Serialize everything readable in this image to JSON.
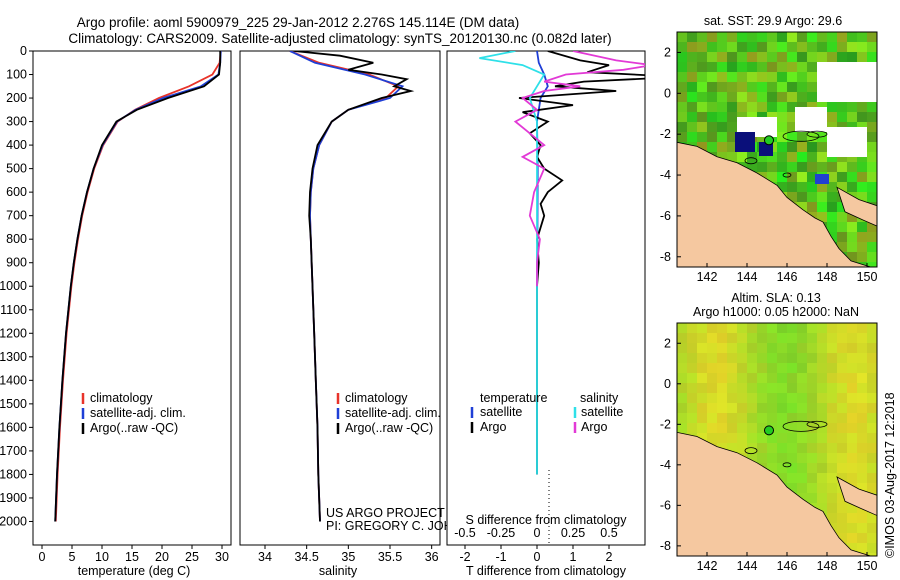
{
  "header": {
    "title_line1": "Argo profile: aoml 5900979_225 29-Jan-2012 2.276S 145.114E (DM data)",
    "title_line2": "Climatology: CARS2009. Satellite-adjusted climatology: synTS_20120130.nc (0.082d later)"
  },
  "colors": {
    "climatology": "#e8332a",
    "satellite": "#1f3fd6",
    "argo": "#000000",
    "sat_salinity": "#2ee0e8",
    "argo_salinity": "#e23ad6",
    "land": "#f5c8a0",
    "sst_green": "#22cc22"
  },
  "project": {
    "line1": "US ARGO PROJECT",
    "line2": "PI: GREGORY C. JOHNSON"
  },
  "credit": "©IMOS 03-Aug-2017 12:2018",
  "chart_data": [
    {
      "type": "line",
      "panel": "temperature",
      "xlabel": "temperature (deg C)",
      "ylabel": "",
      "xlim": [
        -1.5,
        31.5
      ],
      "ylim": [
        2100,
        0
      ],
      "xticks": [
        0,
        5,
        10,
        15,
        20,
        25,
        30
      ],
      "yticks": [
        0,
        100,
        200,
        300,
        400,
        500,
        600,
        700,
        800,
        900,
        1000,
        1100,
        1200,
        1300,
        1400,
        1500,
        1600,
        1700,
        1800,
        1900,
        2000
      ],
      "legend": [
        "climatology",
        "satellite-adj. clim.",
        "Argo(..raw -QC)"
      ],
      "series": [
        {
          "name": "climatology",
          "color": "#e8332a",
          "depth": [
            0,
            50,
            100,
            150,
            200,
            250,
            300,
            400,
            500,
            600,
            700,
            800,
            900,
            1000,
            1200,
            1400,
            1600,
            1800,
            2000
          ],
          "values": [
            29.8,
            29.6,
            28.4,
            24.5,
            19.5,
            15.5,
            12.6,
            10.2,
            8.7,
            7.6,
            6.7,
            6.0,
            5.4,
            4.9,
            4.1,
            3.5,
            3.0,
            2.6,
            2.3
          ]
        },
        {
          "name": "satellite-adj. clim.",
          "color": "#1f3fd6",
          "depth": [
            0,
            50,
            100,
            150,
            200,
            250,
            300,
            400,
            500,
            600,
            700,
            800,
            900,
            1000,
            1200,
            1400,
            1600,
            1800,
            2000
          ],
          "values": [
            29.8,
            29.7,
            29.4,
            26.5,
            20.2,
            15.6,
            12.5,
            10.1,
            8.6,
            7.5,
            6.6,
            5.9,
            5.3,
            4.8,
            4.0,
            3.4,
            2.9,
            2.5,
            2.2
          ]
        },
        {
          "name": "Argo(..raw -QC)",
          "color": "#000000",
          "depth": [
            0,
            50,
            100,
            150,
            200,
            250,
            300,
            400,
            500,
            600,
            700,
            800,
            900,
            1000,
            1200,
            1400,
            1600,
            1800,
            2000
          ],
          "values": [
            29.7,
            29.7,
            29.5,
            27.0,
            21.0,
            15.8,
            12.4,
            10.0,
            8.6,
            7.5,
            6.6,
            5.9,
            5.3,
            4.8,
            4.0,
            3.4,
            2.9,
            2.5,
            2.2
          ]
        }
      ]
    },
    {
      "type": "line",
      "panel": "salinity",
      "xlabel": "salinity",
      "ylabel": "",
      "xlim": [
        33.7,
        36.1
      ],
      "ylim": [
        2100,
        0
      ],
      "xticks": [
        34,
        34.5,
        35,
        35.5,
        36
      ],
      "legend": [
        "climatology",
        "satellite-adj. clim.",
        "Argo(..raw -QC)"
      ],
      "series": [
        {
          "name": "climatology",
          "color": "#e8332a",
          "depth": [
            0,
            50,
            100,
            150,
            200,
            250,
            300,
            400,
            500,
            600,
            700,
            800,
            1000,
            1200,
            1400,
            1600,
            1800,
            2000
          ],
          "values": [
            34.3,
            34.65,
            35.25,
            35.6,
            35.45,
            35.0,
            34.8,
            34.65,
            34.58,
            34.55,
            34.54,
            34.55,
            34.57,
            34.59,
            34.61,
            34.63,
            34.64,
            34.66
          ]
        },
        {
          "name": "satellite-adj. clim.",
          "color": "#1f3fd6",
          "depth": [
            0,
            50,
            100,
            150,
            200,
            250,
            300,
            400,
            500,
            600,
            700,
            800,
            1000,
            1200,
            1400,
            1600,
            1800,
            2000
          ],
          "values": [
            34.3,
            34.6,
            35.2,
            35.65,
            35.5,
            35.0,
            34.8,
            34.65,
            34.58,
            34.55,
            34.54,
            34.55,
            34.57,
            34.59,
            34.61,
            34.63,
            34.64,
            34.66
          ]
        },
        {
          "name": "Argo(..raw -QC)",
          "color": "#000000",
          "depth": [
            0,
            20,
            50,
            80,
            100,
            120,
            150,
            170,
            200,
            250,
            300,
            400,
            500,
            600,
            700,
            800,
            1000,
            1200,
            1400,
            1600,
            1800,
            2000
          ],
          "values": [
            34.35,
            34.9,
            35.3,
            35.0,
            35.4,
            35.7,
            35.55,
            35.75,
            35.4,
            35.0,
            34.8,
            34.63,
            34.57,
            34.54,
            34.53,
            34.55,
            34.57,
            34.59,
            34.61,
            34.63,
            34.64,
            34.66
          ]
        }
      ]
    },
    {
      "type": "line",
      "panel": "difference",
      "xlabel": "T difference from climatology",
      "top_xlabel": "S difference from climatology",
      "xlim": [
        -2.5,
        3.0
      ],
      "ylim": [
        2100,
        0
      ],
      "xticks": [
        -2,
        -1,
        0,
        1,
        2
      ],
      "top_xticks": [
        "-0.5",
        "-0.25",
        "0",
        "0.25",
        "0.5"
      ],
      "legend_temperature": {
        "title": "temperature",
        "items": [
          "satellite",
          "Argo"
        ]
      },
      "legend_salinity": {
        "title": "salinity",
        "items": [
          "satellite",
          "Argo"
        ]
      },
      "series": [
        {
          "name": "temperature satellite",
          "color": "#1f3fd6",
          "depth": [
            0,
            50,
            100,
            150,
            200,
            300,
            500,
            800,
            1000,
            1400,
            1800
          ],
          "values": [
            0,
            0.05,
            0.2,
            0.3,
            0.1,
            0.0,
            0.02,
            0.01,
            0.0,
            0.0,
            0.0
          ]
        },
        {
          "name": "temperature Argo",
          "color": "#000000",
          "depth": [
            0,
            40,
            60,
            90,
            110,
            130,
            150,
            170,
            200,
            230,
            260,
            300,
            350,
            400,
            450,
            500,
            550,
            600,
            650,
            700,
            800,
            900,
            1000,
            1200,
            1400,
            1600,
            1800
          ],
          "values": [
            0.3,
            1.2,
            2.0,
            1.4,
            4.0,
            1.3,
            0.5,
            2.2,
            -0.5,
            1.0,
            -0.4,
            0.3,
            -0.2,
            0.1,
            0.0,
            0.2,
            0.7,
            0.3,
            0.1,
            0.2,
            0.0,
            0.05,
            0.0,
            0.0,
            0.0,
            0.0,
            0.0
          ]
        },
        {
          "name": "salinity satellite",
          "color": "#2ee0e8",
          "depth": [
            0,
            30,
            60,
            100,
            150,
            200,
            300,
            500,
            800,
            1000,
            1400,
            1800
          ],
          "values": [
            -0.15,
            -0.4,
            -0.1,
            0.05,
            0.0,
            -0.05,
            0.0,
            0.0,
            0.0,
            0.0,
            0.0,
            0.0
          ]
        },
        {
          "name": "salinity Argo",
          "color": "#e23ad6",
          "depth": [
            0,
            40,
            60,
            80,
            100,
            130,
            150,
            170,
            200,
            250,
            300,
            350,
            400,
            450,
            500,
            600,
            700,
            800,
            900,
            1000
          ],
          "values": [
            0.25,
            0.55,
            0.8,
            0.6,
            0.2,
            0.05,
            0.3,
            0.05,
            -0.1,
            0.0,
            -0.15,
            -0.05,
            0.05,
            -0.1,
            0.05,
            -0.02,
            -0.05,
            0.02,
            0.0,
            0.0
          ]
        }
      ]
    },
    {
      "type": "heatmap",
      "panel": "sst-map",
      "title": "sat. SST: 29.9 Argo: 29.6",
      "xticks": [
        142,
        144,
        146,
        148,
        150
      ],
      "yticks": [
        2,
        0,
        -2,
        -4,
        -6,
        -8
      ],
      "xlim": [
        140.5,
        150.5
      ],
      "ylim": [
        -8.5,
        3.0
      ],
      "marker": {
        "lon": 145.1,
        "lat": -2.3
      }
    },
    {
      "type": "heatmap",
      "panel": "sla-map",
      "title_line1": "Altim. SLA: 0.13",
      "title_line2": "Argo h1000: 0.05 h2000: NaN",
      "xticks": [
        142,
        144,
        146,
        148,
        150
      ],
      "yticks": [
        2,
        0,
        -2,
        -4,
        -6,
        -8
      ],
      "xlim": [
        140.5,
        150.5
      ],
      "ylim": [
        -8.5,
        3.0
      ],
      "marker": {
        "lon": 145.1,
        "lat": -2.3
      }
    }
  ]
}
